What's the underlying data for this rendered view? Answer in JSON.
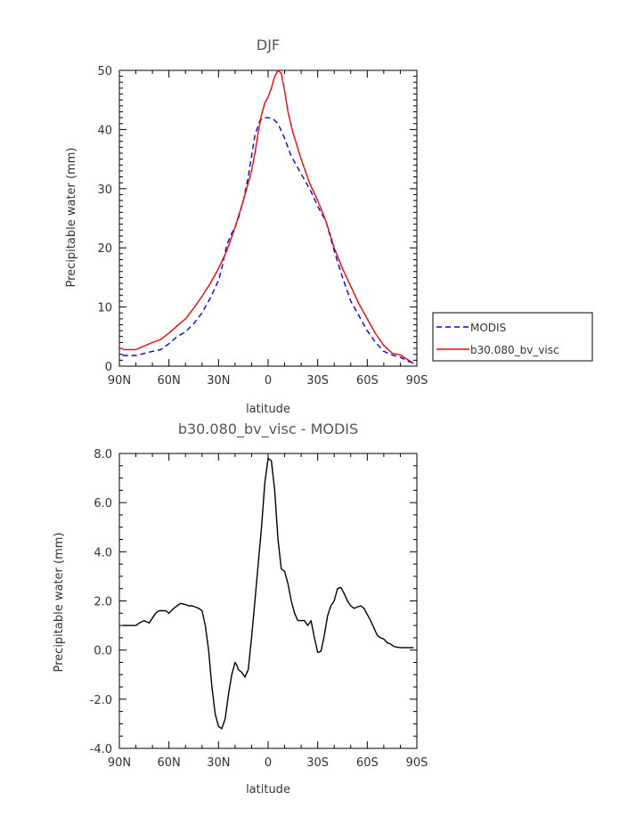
{
  "chart_data": [
    {
      "type": "line",
      "title": "DJF",
      "xlabel": "latitude",
      "ylabel": "Precipitable water (mm)",
      "xlim": [
        90,
        -90
      ],
      "ylim": [
        0,
        50
      ],
      "x_ticks": [
        "90N",
        "60N",
        "30N",
        "0",
        "30S",
        "60S",
        "90S"
      ],
      "y_ticks": [
        "0",
        "10",
        "20",
        "30",
        "40",
        "50"
      ],
      "legend_position": "right",
      "series": [
        {
          "name": "MODIS",
          "color": "#0000ff",
          "dash": "dashed",
          "x": [
            88,
            80,
            70,
            65,
            60,
            55,
            50,
            45,
            40,
            35,
            30,
            28,
            25,
            22,
            20,
            18,
            15,
            12,
            10,
            8,
            5,
            3,
            0,
            -3,
            -6,
            -10,
            -14,
            -18,
            -22,
            -26,
            -30,
            -35,
            -40,
            -45,
            -50,
            -55,
            -60,
            -65,
            -70,
            -75,
            -80,
            -85,
            -88
          ],
          "y": [
            1.8,
            1.8,
            2.5,
            2.8,
            3.8,
            5,
            5.8,
            7.2,
            9,
            11.5,
            14.5,
            16.5,
            20.5,
            22.5,
            23.5,
            25,
            28,
            32,
            35.5,
            39,
            41.5,
            42,
            42,
            41.8,
            41,
            38.5,
            35.5,
            33.5,
            31.5,
            29.5,
            27,
            24.5,
            19.5,
            15,
            11,
            8.5,
            6,
            4,
            2.5,
            1.9,
            1.5,
            0.8,
            0.5
          ]
        },
        {
          "name": "b30.080_bv_visc",
          "color": "#ff0000",
          "dash": "solid",
          "x": [
            88,
            80,
            75,
            70,
            65,
            60,
            55,
            50,
            45,
            40,
            35,
            30,
            25,
            20,
            15,
            10,
            8,
            6,
            4,
            2,
            0,
            -2,
            -4,
            -6,
            -8,
            -10,
            -12,
            -15,
            -20,
            -25,
            -30,
            -35,
            -40,
            -45,
            -50,
            -55,
            -60,
            -65,
            -70,
            -75,
            -80,
            -85,
            -88
          ],
          "y": [
            2.8,
            2.8,
            3.4,
            4,
            4.5,
            5.6,
            6.8,
            8,
            9.8,
            11.8,
            14,
            16.5,
            19.5,
            23.5,
            28,
            33,
            36,
            39.5,
            42.5,
            44.5,
            45.5,
            47,
            49,
            50,
            49.5,
            46.5,
            43,
            39.5,
            35,
            31,
            28,
            24.5,
            20,
            16.5,
            13.5,
            10.5,
            8,
            5.5,
            3.5,
            2.2,
            1.9,
            1,
            0.5
          ]
        }
      ]
    },
    {
      "type": "line",
      "title": "b30.080_bv_visc - MODIS",
      "xlabel": "latitude",
      "ylabel": "Precipitable water (mm)",
      "xlim": [
        90,
        -90
      ],
      "ylim": [
        -4,
        8
      ],
      "x_ticks": [
        "90N",
        "60N",
        "30N",
        "0",
        "30S",
        "60S",
        "90S"
      ],
      "y_ticks": [
        "-4.0",
        "-2.0",
        "0.0",
        "2.0",
        "4.0",
        "6.0",
        "8.0"
      ],
      "series": [
        {
          "color": "#000000",
          "x": [
            88,
            84,
            80,
            78,
            75,
            72,
            70,
            68,
            66,
            64,
            62,
            60,
            57,
            55,
            53,
            50,
            48,
            46,
            44,
            42,
            40,
            38,
            36,
            34,
            32,
            30,
            28,
            26,
            24,
            22,
            20,
            19,
            18,
            16,
            14,
            12,
            10,
            8,
            6,
            4,
            2,
            0,
            -2,
            -4,
            -6,
            -8,
            -10,
            -12,
            -14,
            -16,
            -18,
            -20,
            -22,
            -24,
            -26,
            -28,
            -30,
            -32,
            -34,
            -36,
            -38,
            -40,
            -42,
            -44,
            -46,
            -48,
            -50,
            -52,
            -54,
            -56,
            -58,
            -60,
            -62,
            -64,
            -66,
            -68,
            -70,
            -72,
            -74,
            -76,
            -78,
            -80,
            -82,
            -84,
            -86,
            -88
          ],
          "y": [
            1.0,
            1.0,
            1.0,
            1.1,
            1.2,
            1.1,
            1.3,
            1.5,
            1.6,
            1.6,
            1.6,
            1.5,
            1.7,
            1.8,
            1.9,
            1.85,
            1.8,
            1.8,
            1.75,
            1.7,
            1.6,
            1.0,
            0.0,
            -1.5,
            -2.6,
            -3.1,
            -3.2,
            -2.8,
            -1.8,
            -1.0,
            -0.5,
            -0.6,
            -0.8,
            -0.9,
            -1.1,
            -0.8,
            0.5,
            2.0,
            3.5,
            5.0,
            6.8,
            7.8,
            7.7,
            6.5,
            4.5,
            3.3,
            3.2,
            2.7,
            2.0,
            1.5,
            1.2,
            1.2,
            1.2,
            1.0,
            1.2,
            0.5,
            -0.1,
            -0.05,
            0.6,
            1.4,
            1.8,
            2.0,
            2.5,
            2.55,
            2.3,
            2.0,
            1.8,
            1.7,
            1.75,
            1.8,
            1.7,
            1.45,
            1.2,
            0.9,
            0.6,
            0.5,
            0.45,
            0.3,
            0.25,
            0.15,
            0.12,
            0.1,
            0.1,
            0.1,
            0.1,
            0.1
          ]
        }
      ]
    }
  ]
}
